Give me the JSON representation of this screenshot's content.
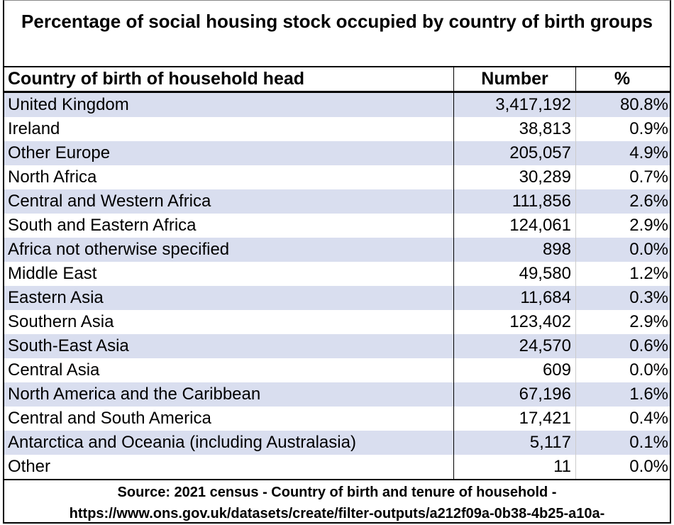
{
  "title": "Percentage of social housing stock occupied by country of birth groups",
  "table": {
    "columns": [
      "Country of birth of household head",
      "Number",
      "%"
    ],
    "rows": [
      [
        "United Kingdom",
        "3,417,192",
        "80.8%"
      ],
      [
        "Ireland",
        "38,813",
        "0.9%"
      ],
      [
        "Other Europe",
        "205,057",
        "4.9%"
      ],
      [
        "North Africa",
        "30,289",
        "0.7%"
      ],
      [
        "Central and Western Africa",
        "111,856",
        "2.6%"
      ],
      [
        "South and Eastern Africa",
        "124,061",
        "2.9%"
      ],
      [
        "Africa not otherwise specified",
        "898",
        "0.0%"
      ],
      [
        "Middle East",
        "49,580",
        "1.2%"
      ],
      [
        "Eastern Asia",
        "11,684",
        "0.3%"
      ],
      [
        "Southern Asia",
        "123,402",
        "2.9%"
      ],
      [
        "South-East Asia",
        "24,570",
        "0.6%"
      ],
      [
        "Central Asia",
        "609",
        "0.0%"
      ],
      [
        "North America and the Caribbean",
        "67,196",
        "1.6%"
      ],
      [
        "Central and South America",
        "17,421",
        "0.4%"
      ],
      [
        "Antarctica and Oceania (including Australasia)",
        "5,117",
        "0.1%"
      ],
      [
        "Other",
        "11",
        "0.0%"
      ]
    ]
  },
  "source": [
    "Source: 2021 census - Country of birth and tenure of household -",
    "https://www.ons.gov.uk/datasets/create/filter-outputs/a212f09a-0b38-4b25-a10a-"
  ]
}
